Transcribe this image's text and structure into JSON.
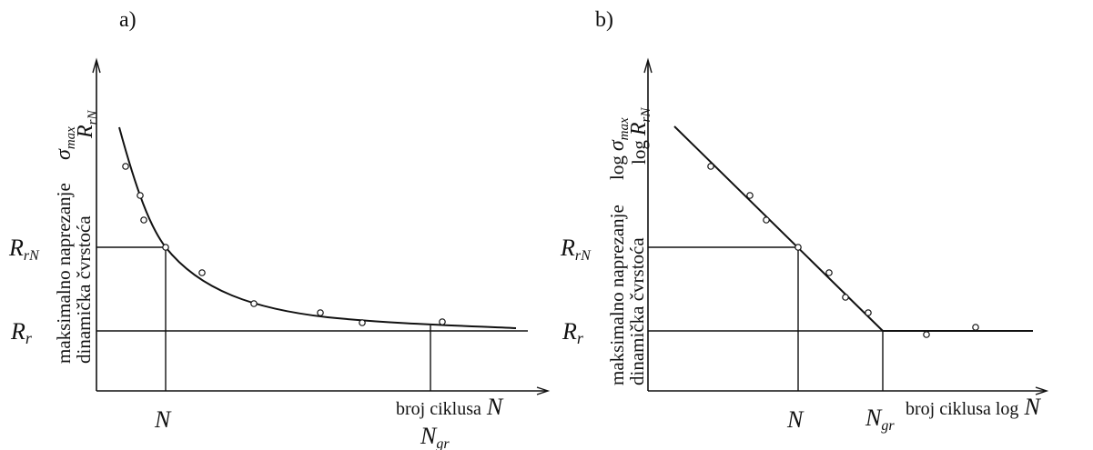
{
  "panels": [
    {
      "id": "a",
      "tag": "a)",
      "scale": "linear",
      "y_label_line1": "maksimalno naprezanje",
      "y_label_line2": "dinamička čvrstoća",
      "y_symbol_main": "σ",
      "y_symbol_main_sub": "max",
      "y_symbol_second": "R",
      "y_symbol_second_sub": "rN",
      "x_axis_text": "broj ciklusa",
      "x_axis_symbol": "N",
      "tick_RrN": "R",
      "tick_RrN_sub": "rN",
      "tick_Rr": "R",
      "tick_Rr_sub": "r",
      "tick_N": "N",
      "tick_Ngr": "N",
      "tick_Ngr_sub": "gr"
    },
    {
      "id": "b",
      "tag": "b)",
      "scale": "log-log",
      "y_label_line1": "maksimalno naprezanje",
      "y_label_line2": "dinamička čvrstoća",
      "y_log_prefix": "log",
      "y_symbol_main": "σ",
      "y_symbol_main_sub": "max",
      "y_symbol_second": "R",
      "y_symbol_second_sub": "rN",
      "x_axis_text": "broj ciklusa log",
      "x_axis_symbol": "N",
      "tick_RrN": "R",
      "tick_RrN_sub": "rN",
      "tick_Rr": "R",
      "tick_Rr_sub": "r",
      "tick_N": "N",
      "tick_Ngr": "N",
      "tick_Ngr_sub": "gr"
    }
  ],
  "chart_data": [
    {
      "type": "scatter",
      "panel": "a",
      "description_curve": "decreasing hyperbolic fatigue (Wöhler) curve approaching R_r",
      "points": [
        [
          0.06,
          0.87
        ],
        [
          0.11,
          0.72
        ],
        [
          0.13,
          0.6
        ],
        [
          0.15,
          0.46
        ],
        [
          0.24,
          0.33
        ],
        [
          0.36,
          0.18
        ],
        [
          0.56,
          0.12
        ],
        [
          0.69,
          0.05
        ],
        [
          0.87,
          0.05
        ]
      ],
      "reference_points": {
        "N": 0.15,
        "N_gr": 0.85,
        "R_rN": 0.46,
        "R_r": 0.0
      }
    },
    {
      "type": "scatter",
      "panel": "b",
      "description_curve": "straight descending line in log-log scale, then horizontal at R_r from N_gr",
      "points": [
        [
          0.15,
          0.87
        ],
        [
          0.25,
          0.72
        ],
        [
          0.29,
          0.6
        ],
        [
          0.38,
          0.46
        ],
        [
          0.46,
          0.31
        ],
        [
          0.5,
          0.17
        ],
        [
          0.56,
          0.09
        ],
        [
          0.71,
          -0.02
        ],
        [
          0.83,
          0.02
        ]
      ],
      "reference_points": {
        "N": 0.38,
        "N_gr": 0.6,
        "R_rN": 0.46,
        "R_r": 0.0
      }
    }
  ]
}
